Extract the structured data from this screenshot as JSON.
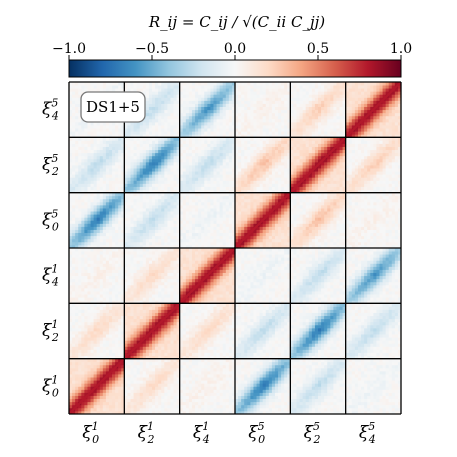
{
  "chart_data": {
    "type": "heatmap",
    "title": "R_ij = C_ij / √(C_ii C_jj)",
    "annotation": "DS1+5",
    "colormap": "RdBu_r (blue negative, red positive)",
    "colorbar": {
      "placement": "top",
      "range": [
        -1.0,
        1.0
      ],
      "ticks": [
        -1.0,
        -0.5,
        0.0,
        0.5,
        1.0
      ],
      "tick_labels": [
        "−1.0",
        "−0.5",
        "0.0",
        "0.5",
        "1.0"
      ]
    },
    "grid_blocks": 6,
    "x_labels": [
      {
        "base": "ξ",
        "sub": "0",
        "sup": "1"
      },
      {
        "base": "ξ",
        "sub": "2",
        "sup": "1"
      },
      {
        "base": "ξ",
        "sub": "4",
        "sup": "1"
      },
      {
        "base": "ξ",
        "sub": "0",
        "sup": "5"
      },
      {
        "base": "ξ",
        "sub": "2",
        "sup": "5"
      },
      {
        "base": "ξ",
        "sub": "4",
        "sup": "5"
      }
    ],
    "y_labels_bottom_to_top": [
      {
        "base": "ξ",
        "sub": "0",
        "sup": "1"
      },
      {
        "base": "ξ",
        "sub": "2",
        "sup": "1"
      },
      {
        "base": "ξ",
        "sub": "4",
        "sup": "1"
      },
      {
        "base": "ξ",
        "sub": "0",
        "sup": "5"
      },
      {
        "base": "ξ",
        "sub": "2",
        "sup": "5"
      },
      {
        "base": "ξ",
        "sub": "4",
        "sup": "5"
      }
    ],
    "block_peak_correlation": [
      [
        1.0,
        0.2,
        0.05,
        -0.7,
        -0.25,
        -0.05
      ],
      [
        0.2,
        1.0,
        0.2,
        -0.25,
        -0.7,
        -0.25
      ],
      [
        0.05,
        0.2,
        1.0,
        -0.05,
        -0.25,
        -0.6
      ],
      [
        -0.7,
        -0.25,
        -0.05,
        1.0,
        0.3,
        0.05
      ],
      [
        -0.25,
        -0.7,
        -0.25,
        0.3,
        1.0,
        0.25
      ],
      [
        -0.05,
        -0.25,
        -0.6,
        0.05,
        0.25,
        1.0
      ]
    ]
  }
}
